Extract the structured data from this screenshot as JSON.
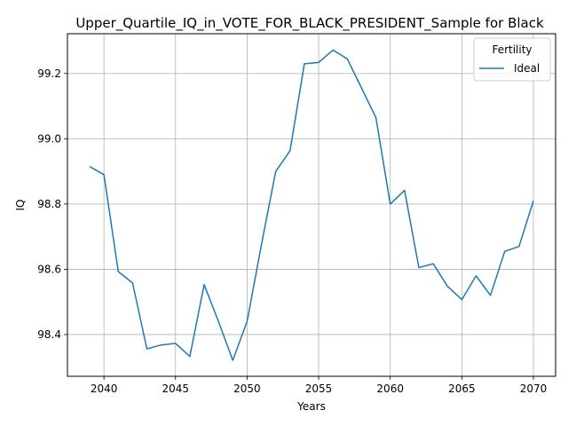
{
  "chart_data": {
    "type": "line",
    "title": "Upper_Quartile_IQ_in_VOTE_FOR_BLACK_PRESIDENT_Sample for Black",
    "xlabel": "Years",
    "ylabel": "IQ",
    "xlim": [
      2037.45,
      2071.55
    ],
    "ylim": [
      98.272,
      99.322
    ],
    "xticks": [
      2040,
      2045,
      2050,
      2055,
      2060,
      2065,
      2070
    ],
    "yticks": [
      98.4,
      98.6,
      98.8,
      99.0,
      99.2
    ],
    "ytick_labels": [
      "98.4",
      "98.6",
      "98.8",
      "99.0",
      "99.2"
    ],
    "grid": true,
    "legend": {
      "title": "Fertility",
      "placement": "top-right"
    },
    "x": [
      2039,
      2040,
      2041,
      2042,
      2043,
      2044,
      2045,
      2046,
      2047,
      2048,
      2049,
      2050,
      2051,
      2052,
      2053,
      2054,
      2055,
      2056,
      2057,
      2058,
      2059,
      2060,
      2061,
      2062,
      2063,
      2064,
      2065,
      2066,
      2067,
      2068,
      2069,
      2070
    ],
    "series": [
      {
        "name": "Ideal",
        "color": "#1f77b4",
        "values": [
          98.915,
          98.89,
          98.593,
          98.558,
          98.356,
          98.368,
          98.373,
          98.333,
          98.553,
          98.44,
          98.321,
          98.44,
          98.675,
          98.9,
          98.963,
          99.23,
          99.234,
          99.272,
          99.245,
          99.155,
          99.065,
          98.8,
          98.842,
          98.605,
          98.617,
          98.548,
          98.507,
          98.58,
          98.52,
          98.655,
          98.67,
          98.81
        ]
      }
    ]
  }
}
